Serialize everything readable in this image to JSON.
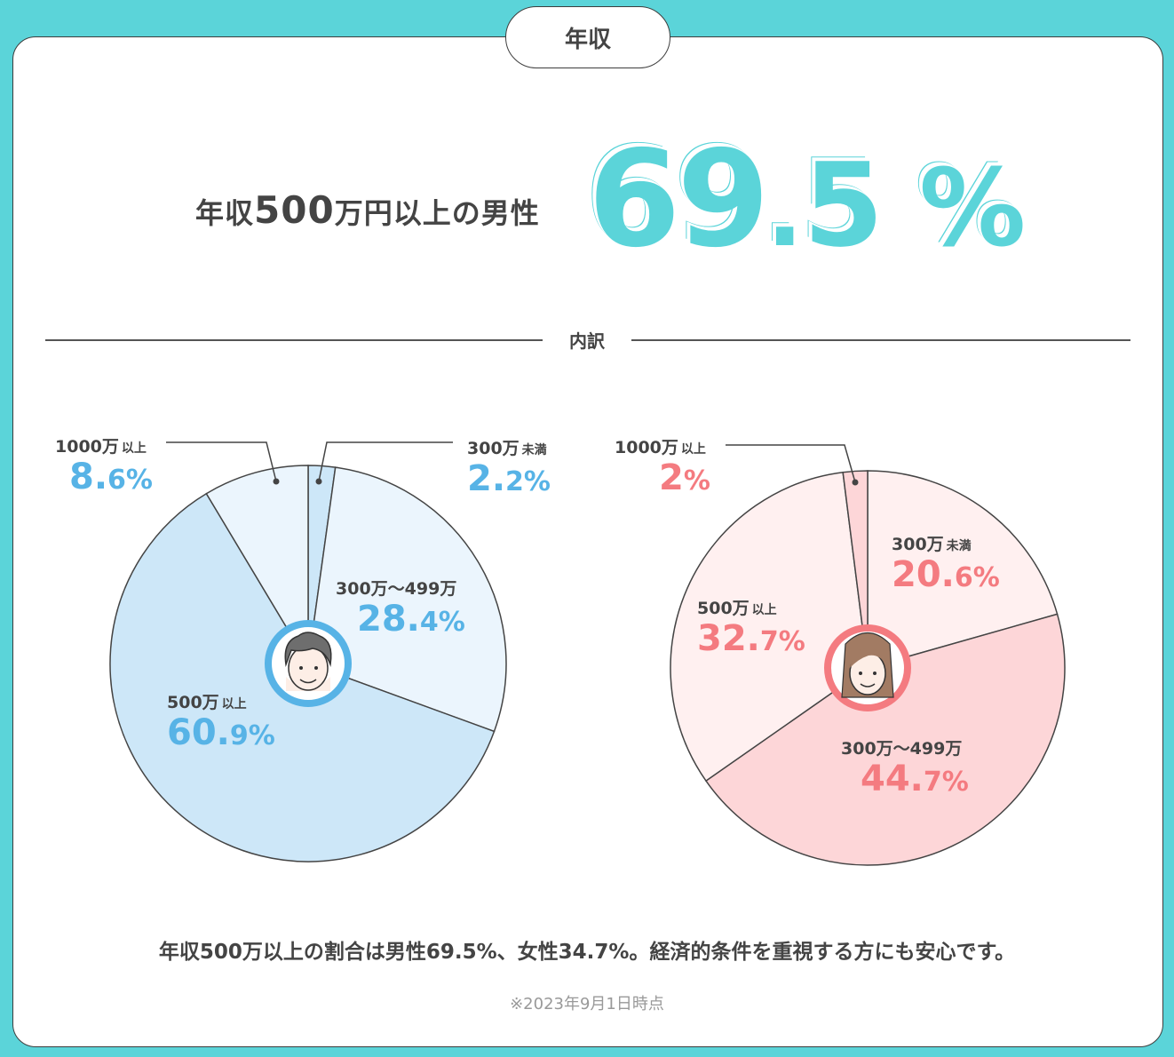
{
  "section_tab": {
    "label": "年収"
  },
  "headline": {
    "prefix": "年収",
    "number": "500",
    "suffix": "万円以上の男性"
  },
  "big_stat": {
    "int": "69",
    "dot": ".",
    "dec": "5",
    "pct": "%",
    "color": "#5bd4d9"
  },
  "divider": {
    "label": "内訳"
  },
  "colors": {
    "male_text": "#57b3e6",
    "male_dark": "#cde7f8",
    "male_light": "#ebf5fd",
    "female_text": "#f47b80",
    "female_dark": "#fdd6d8",
    "female_light": "#fff0f0",
    "outline": "#444444"
  },
  "chart_data": [
    {
      "type": "pie",
      "title": "男性 年収内訳",
      "center": [
        347,
        747
      ],
      "radius": 223,
      "start_angle_deg": 0,
      "direction": "clockwise",
      "categories": [
        "300万未満",
        "300万～499万",
        "500万以上",
        "1000万以上"
      ],
      "values": [
        2.2,
        28.4,
        60.9,
        8.6
      ],
      "fills": [
        "#cde7f8",
        "#ebf5fd",
        "#cde7f8",
        "#ebf5fd"
      ],
      "labels": [
        {
          "cat": "300万",
          "small": "未満",
          "int": "2.",
          "frac": "2%"
        },
        {
          "cat": "300万～499万",
          "small": "",
          "int": "28.",
          "frac": "4%"
        },
        {
          "cat": "500万",
          "small": "以上",
          "int": "60.",
          "frac": "9%"
        },
        {
          "cat": "1000万",
          "small": "以上",
          "int": "8.",
          "frac": "6%"
        }
      ]
    },
    {
      "type": "pie",
      "title": "女性 年収内訳",
      "center": [
        977,
        752
      ],
      "radius": 222,
      "start_angle_deg": 0,
      "direction": "clockwise",
      "categories": [
        "300万未満",
        "300万～499万",
        "500万以上",
        "1000万以上"
      ],
      "values": [
        20.6,
        44.7,
        32.7,
        2.0
      ],
      "fills": [
        "#fff0f0",
        "#fdd6d8",
        "#fff0f0",
        "#fdd6d8"
      ],
      "labels": [
        {
          "cat": "300万",
          "small": "未満",
          "int": "20.",
          "frac": "6%"
        },
        {
          "cat": "300万～499万",
          "small": "",
          "int": "44.",
          "frac": "7%"
        },
        {
          "cat": "500万",
          "small": "以上",
          "int": "32.",
          "frac": "7%"
        },
        {
          "cat": "1000万",
          "small": "以上",
          "int": "2",
          "frac": "%"
        }
      ]
    }
  ],
  "summary": "年収500万以上の割合は男性69.5%、女性34.7%。経済的条件を重視する方にも安心です。",
  "note": "※2023年9月1日時点"
}
